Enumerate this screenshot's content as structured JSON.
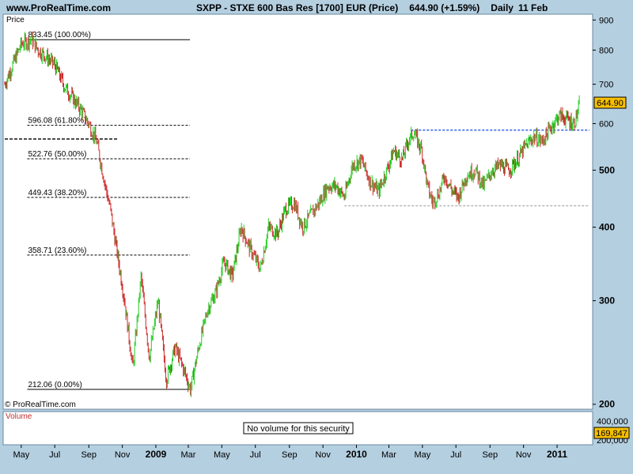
{
  "header": {
    "site": "www.ProRealTime.com",
    "instrument": "SXPP - STXE 600 Bas Res [1700] EUR (Price)",
    "price_change": "644.90 (+1.59%)",
    "period": "Daily",
    "date": "11 Feb"
  },
  "panel": {
    "price_label": "Price",
    "copyright": "© ProRealTime.com",
    "volume_label": "Volume",
    "no_volume_text": "No volume for this security",
    "last_price_badge": "644.90",
    "last_volume_badge": "169,847"
  },
  "colors": {
    "up": "#22cc22",
    "down": "#cc2a2a",
    "background": "#ffffff",
    "frame": "#b4cfe0",
    "badge": "#f7c000",
    "dotted_blue": "#2255ee"
  },
  "chart_data": {
    "type": "line",
    "title": "SXPP - STXE 600 Bas Res [1700] EUR (Price)",
    "scale": "log",
    "ylim": [
      198,
      915
    ],
    "y_ticks": [
      200,
      300,
      400,
      500,
      600,
      700,
      800,
      900
    ],
    "x_ticks": [
      "May",
      "Jul",
      "Sep",
      "Nov",
      "2009",
      "Mar",
      "May",
      "Jul",
      "Sep",
      "Nov",
      "2010",
      "Mar",
      "May",
      "Jul",
      "Sep",
      "Nov",
      "2011"
    ],
    "fibonacci": [
      {
        "label": "833.45 (100.00%)",
        "value": 833.45
      },
      {
        "label": "596.08 (61.80%)",
        "value": 596.08
      },
      {
        "label": "522.76 (50.00%)",
        "value": 522.76
      },
      {
        "label": "449.43 (38.20%)",
        "value": 449.43
      },
      {
        "label": "358.71 (23.60%)",
        "value": 358.71
      },
      {
        "label": "212.06 (0.00%)",
        "value": 212.06
      }
    ],
    "horizontal_lines": [
      {
        "value": 565,
        "style": "dashed-black",
        "range": "May 2008 - Oct 2008"
      },
      {
        "value": 585,
        "style": "dashed-blue",
        "range": "Apr 2010 - Feb 2011"
      },
      {
        "value": 435,
        "style": "dashed-grey",
        "range": "Dec 2009 - Feb 2011"
      }
    ],
    "series": [
      {
        "x": [
          "2008-04-01",
          "2008-05-01",
          "2008-05-20",
          "2008-06-01",
          "2008-06-15",
          "2008-07-01",
          "2008-07-20",
          "2008-08-05",
          "2008-08-20",
          "2008-09-01",
          "2008-09-15",
          "2008-10-01",
          "2008-10-10",
          "2008-10-27",
          "2008-11-05",
          "2008-11-20",
          "2008-12-05",
          "2008-12-20",
          "2009-01-05",
          "2009-01-20",
          "2009-02-05",
          "2009-02-20",
          "2009-03-05",
          "2009-03-20",
          "2009-04-05",
          "2009-04-20",
          "2009-05-05",
          "2009-05-20",
          "2009-06-05",
          "2009-06-20",
          "2009-07-10",
          "2009-07-25",
          "2009-08-10",
          "2009-08-25",
          "2009-09-10",
          "2009-09-25",
          "2009-10-10",
          "2009-10-25",
          "2009-11-10",
          "2009-11-25",
          "2009-12-10",
          "2009-12-25",
          "2010-01-10",
          "2010-01-25",
          "2010-02-10",
          "2010-02-25",
          "2010-03-10",
          "2010-03-25",
          "2010-04-05",
          "2010-04-15",
          "2010-04-30",
          "2010-05-10",
          "2010-05-20",
          "2010-06-01",
          "2010-06-10",
          "2010-06-25",
          "2010-07-05",
          "2010-07-20",
          "2010-08-05",
          "2010-08-20",
          "2010-09-05",
          "2010-09-20",
          "2010-10-05",
          "2010-10-20",
          "2010-11-05",
          "2010-11-20",
          "2010-12-05",
          "2010-12-20",
          "2011-01-05",
          "2011-01-20",
          "2011-02-01",
          "2011-02-11"
        ],
        "values": [
          700,
          820,
          833,
          800,
          780,
          755,
          690,
          660,
          628,
          600,
          560,
          470,
          430,
          340,
          300,
          230,
          330,
          240,
          300,
          220,
          250,
          230,
          212,
          250,
          290,
          310,
          350,
          330,
          400,
          370,
          340,
          400,
          390,
          430,
          440,
          400,
          420,
          440,
          470,
          470,
          450,
          510,
          520,
          480,
          460,
          500,
          540,
          520,
          560,
          580,
          540,
          470,
          440,
          460,
          490,
          460,
          450,
          490,
          500,
          470,
          500,
          510,
          500,
          520,
          550,
          570,
          560,
          590,
          620,
          610,
          600,
          645
        ]
      }
    ],
    "volume": {
      "note": "No volume for this security",
      "y_ticks": [
        "400,000",
        "200,000"
      ]
    }
  }
}
